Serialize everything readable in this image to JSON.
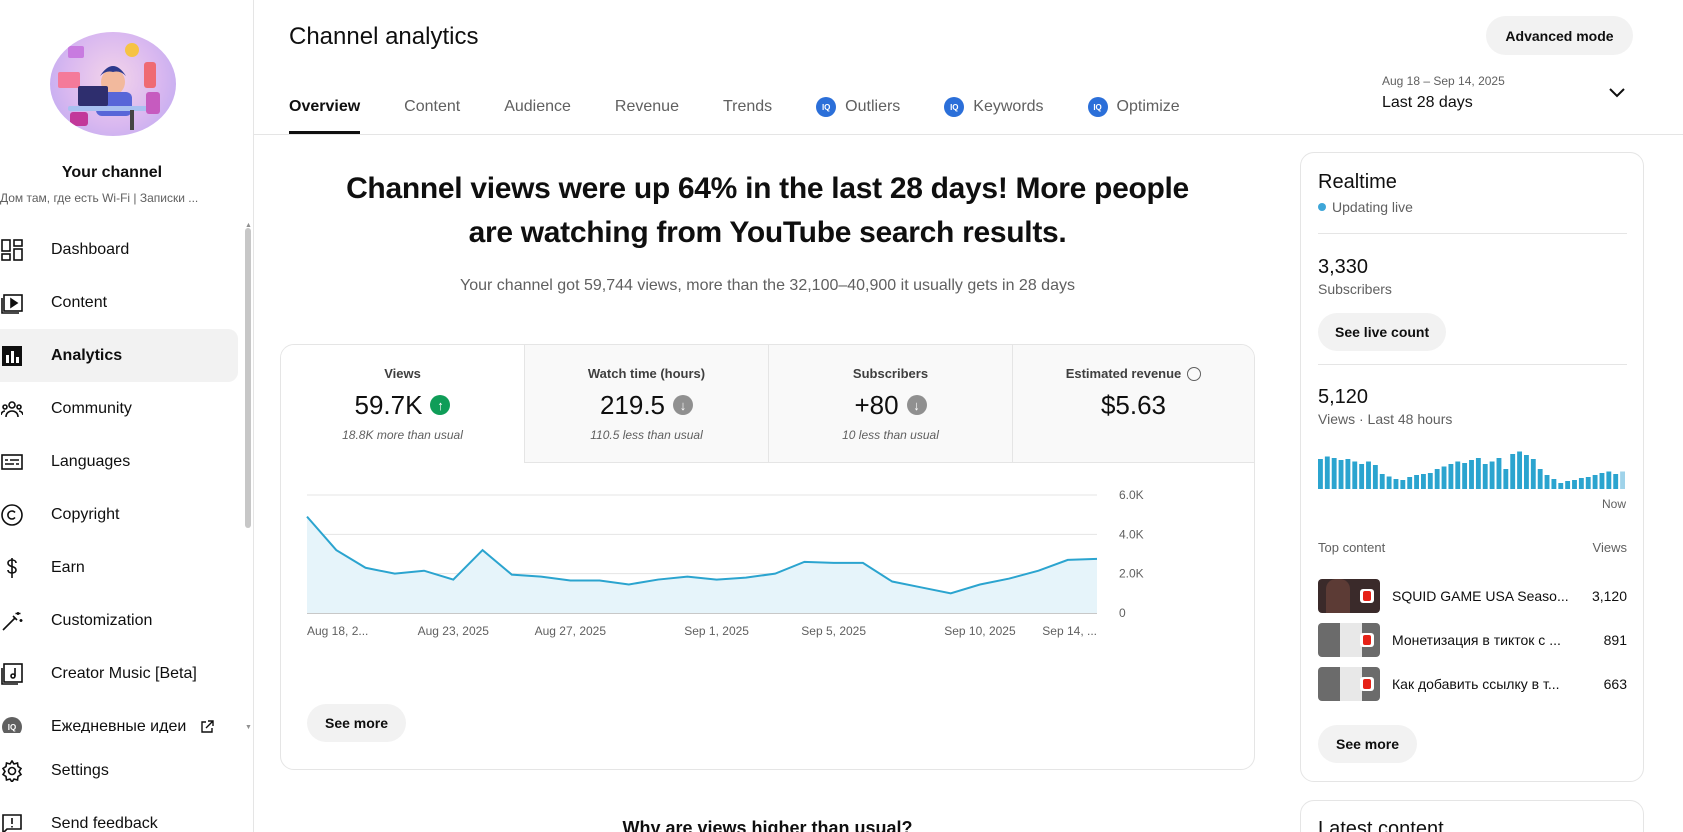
{
  "sidebar": {
    "channel_name": "Your channel",
    "channel_sub": "Дом там, где есть Wi-Fi | Записки ...",
    "items": [
      {
        "label": "Dashboard",
        "icon": "dashboard-icon"
      },
      {
        "label": "Content",
        "icon": "content-icon"
      },
      {
        "label": "Analytics",
        "icon": "analytics-icon",
        "active": true
      },
      {
        "label": "Community",
        "icon": "community-icon"
      },
      {
        "label": "Languages",
        "icon": "languages-icon"
      },
      {
        "label": "Copyright",
        "icon": "copyright-icon"
      },
      {
        "label": "Earn",
        "icon": "earn-icon"
      },
      {
        "label": "Customization",
        "icon": "customization-icon"
      },
      {
        "label": "Creator Music [Beta]",
        "icon": "creator-music-icon"
      },
      {
        "label": "Ежедневные идеи",
        "icon": "iq-icon"
      }
    ],
    "bottom": [
      {
        "label": "Settings",
        "icon": "settings-icon"
      },
      {
        "label": "Send feedback",
        "icon": "feedback-icon"
      }
    ]
  },
  "header": {
    "title": "Channel analytics",
    "advanced_mode": "Advanced mode",
    "tabs": [
      {
        "label": "Overview",
        "active": true,
        "iq": false
      },
      {
        "label": "Content",
        "iq": false
      },
      {
        "label": "Audience",
        "iq": false
      },
      {
        "label": "Revenue",
        "iq": false
      },
      {
        "label": "Trends",
        "iq": false
      },
      {
        "label": "Outliers",
        "iq": true
      },
      {
        "label": "Keywords",
        "iq": true
      },
      {
        "label": "Optimize",
        "iq": true
      }
    ],
    "iq_badge": "IQ",
    "date_range": "Aug 18 – Sep 14, 2025",
    "date_label": "Last 28 days"
  },
  "main": {
    "headline": "Channel views were up 64% in the last 28 days! More people are watching from YouTube search results.",
    "subline": "Your channel got 59,744 views, more than the 32,100–40,900 it usually gets in 28 days",
    "metrics": [
      {
        "label": "Views",
        "value": "59.7K",
        "trend": "up",
        "note": "18.8K more than usual"
      },
      {
        "label": "Watch time (hours)",
        "value": "219.5",
        "trend": "down",
        "note": "110.5 less than usual"
      },
      {
        "label": "Subscribers",
        "value": "+80",
        "trend": "down",
        "note": "10 less than usual"
      },
      {
        "label": "Estimated revenue",
        "value": "$5.63",
        "trend": "none",
        "note": ""
      }
    ],
    "see_more": "See more",
    "why": "Why are views higher than usual?"
  },
  "chart_data": {
    "type": "area",
    "x": [
      "Aug 18",
      "Aug 19",
      "Aug 20",
      "Aug 21",
      "Aug 22",
      "Aug 23",
      "Aug 24",
      "Aug 25",
      "Aug 26",
      "Aug 27",
      "Aug 28",
      "Aug 29",
      "Aug 30",
      "Aug 31",
      "Sep 1",
      "Sep 2",
      "Sep 3",
      "Sep 4",
      "Sep 5",
      "Sep 6",
      "Sep 7",
      "Sep 8",
      "Sep 9",
      "Sep 10",
      "Sep 11",
      "Sep 12",
      "Sep 13",
      "Sep 14"
    ],
    "values": [
      4900,
      3200,
      2300,
      2000,
      2150,
      1700,
      3200,
      1950,
      1850,
      1650,
      1650,
      1450,
      1700,
      1850,
      1700,
      1800,
      2000,
      2600,
      2550,
      2550,
      1600,
      1300,
      1000,
      1450,
      1750,
      2150,
      2700,
      2750
    ],
    "tick_labels": [
      "Aug 18, 2...",
      "Aug 23, 2025",
      "Aug 27, 2025",
      "Sep 1, 2025",
      "Sep 5, 2025",
      "Sep 10, 2025",
      "Sep 14, ..."
    ],
    "tick_indices": [
      0,
      5,
      9,
      14,
      18,
      23,
      27
    ],
    "y_ticks": [
      "6.0K",
      "4.0K",
      "2.0K",
      "0"
    ],
    "ylim": [
      0,
      6000
    ],
    "grid": true,
    "color": "#2ba4cf"
  },
  "realtime": {
    "title": "Realtime",
    "live": "Updating live",
    "subscribers": "3,330",
    "subscribers_label": "Subscribers",
    "live_count_btn": "See live count",
    "views": "5,120",
    "views_label": "Views · Last 48 hours",
    "now": "Now",
    "bars": [
      60,
      65,
      62,
      58,
      60,
      55,
      50,
      55,
      48,
      30,
      25,
      20,
      18,
      24,
      28,
      30,
      32,
      40,
      45,
      50,
      55,
      52,
      58,
      62,
      50,
      55,
      62,
      40,
      70,
      75,
      68,
      60,
      40,
      28,
      20,
      12,
      16,
      18,
      22,
      24,
      28,
      32,
      35,
      30,
      35
    ],
    "top_content_label": "Top content",
    "views_col": "Views",
    "top_content": [
      {
        "title": "SQUID GAME USA Seaso...",
        "views": "3,120"
      },
      {
        "title": "Монетизация в тикток с ...",
        "views": "891"
      },
      {
        "title": "Как добавить ссылку в т...",
        "views": "663"
      }
    ],
    "see_more": "See more"
  },
  "latest": {
    "title": "Latest content"
  }
}
